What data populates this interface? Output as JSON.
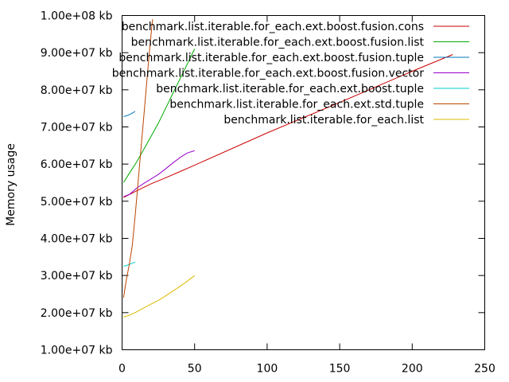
{
  "chart_data": {
    "type": "line",
    "title": "",
    "xlabel": "",
    "ylabel": "Memory usage",
    "xlim": [
      0,
      250
    ],
    "ylim": [
      10000000,
      100000000
    ],
    "x_ticks": [
      0,
      50,
      100,
      150,
      200,
      250
    ],
    "x_tick_labels": [
      "0",
      "50",
      "100",
      "150",
      "200",
      "250"
    ],
    "y_ticks": [
      10000000,
      20000000,
      30000000,
      40000000,
      50000000,
      60000000,
      70000000,
      80000000,
      90000000,
      100000000
    ],
    "y_tick_labels": [
      "1.00e+07 kb",
      "2.00e+07 kb",
      "3.00e+07 kb",
      "4.00e+07 kb",
      "5.00e+07 kb",
      "6.00e+07 kb",
      "7.00e+07 kb",
      "8.00e+07 kb",
      "9.00e+07 kb",
      "1.00e+08 kb"
    ],
    "grid": false,
    "legend_position": "top-right",
    "series": [
      {
        "name": "benchmark.list.iterable.for_each.ext.boost.fusion.cons",
        "color": "#cc0000",
        "x": [
          1,
          10,
          20,
          30,
          40,
          50,
          100,
          150,
          200,
          228
        ],
        "y": [
          51000000,
          52800000,
          54700000,
          56300000,
          58000000,
          59700000,
          68400000,
          76600000,
          85000000,
          89500000
        ]
      },
      {
        "name": "benchmark.list.iterable.for_each.ext.boost.fusion.list",
        "color": "#00aa00",
        "x": [
          1,
          5,
          10,
          15,
          20,
          25,
          30,
          35,
          40,
          45,
          50
        ],
        "y": [
          55000000,
          57500000,
          60500000,
          64000000,
          67500000,
          71000000,
          75000000,
          79000000,
          83000000,
          87000000,
          91000000
        ]
      },
      {
        "name": "benchmark.list.iterable.for_each.ext.boost.fusion.tuple",
        "color": "#0077bb",
        "x": [
          1,
          3,
          5,
          7,
          9
        ],
        "y": [
          72800000,
          73000000,
          73300000,
          73700000,
          74200000
        ]
      },
      {
        "name": "benchmark.list.iterable.for_each.ext.boost.fusion.vector",
        "color": "#9900cc",
        "x": [
          1,
          5,
          10,
          15,
          20,
          25,
          30,
          35,
          40,
          45,
          50
        ],
        "y": [
          51200000,
          51800000,
          53500000,
          54800000,
          56000000,
          57200000,
          58700000,
          60300000,
          61800000,
          63000000,
          63600000
        ]
      },
      {
        "name": "benchmark.list.iterable.for_each.ext.boost.tuple",
        "color": "#00cccc",
        "x": [
          1,
          3,
          5,
          7,
          9
        ],
        "y": [
          32500000,
          32700000,
          33000000,
          33300000,
          33600000
        ]
      },
      {
        "name": "benchmark.list.iterable.for_each.ext.std.tuple",
        "color": "#bb4400",
        "x": [
          1,
          3,
          5,
          7,
          9,
          11,
          13,
          15,
          17,
          19,
          21
        ],
        "y": [
          24000000,
          29000000,
          33000000,
          38000000,
          46000000,
          55000000,
          64000000,
          73000000,
          82000000,
          91000000,
          99000000
        ]
      },
      {
        "name": "benchmark.list.iterable.for_each.list",
        "color": "#ddbb00",
        "x": [
          1,
          5,
          10,
          15,
          20,
          25,
          30,
          35,
          40,
          45,
          50
        ],
        "y": [
          18800000,
          19300000,
          20200000,
          21300000,
          22300000,
          23300000,
          24500000,
          25800000,
          27100000,
          28500000,
          30000000
        ]
      }
    ]
  }
}
